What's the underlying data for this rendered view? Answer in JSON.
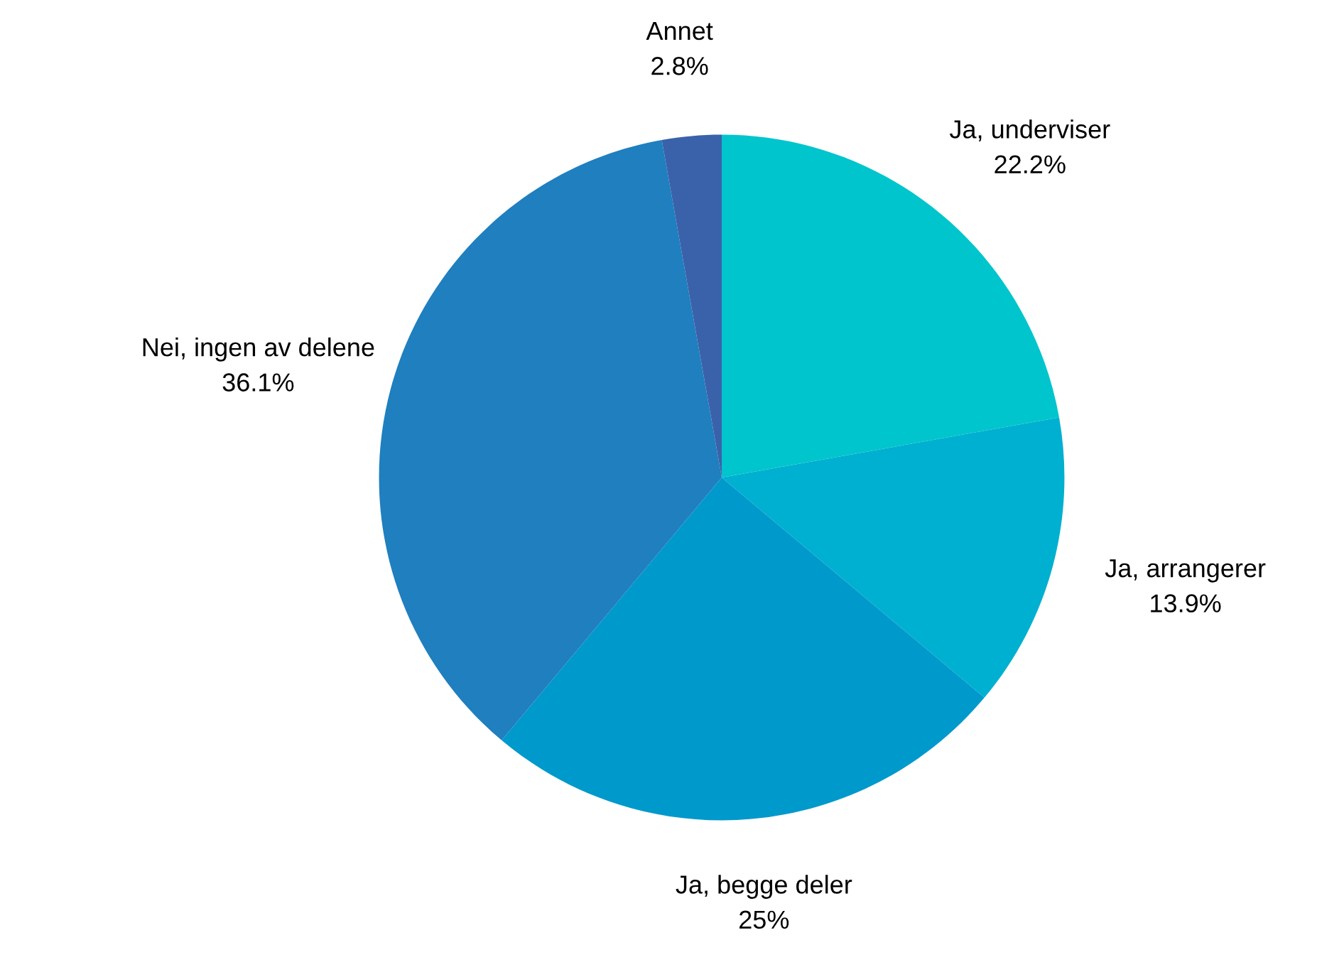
{
  "chart_data": {
    "type": "pie",
    "categories": [
      "Ja, underviser",
      "Ja, arrangerer",
      "Ja, begge deler",
      "Nei, ingen av delene",
      "Annet"
    ],
    "values": [
      22.2,
      13.9,
      25,
      36.1,
      2.8
    ],
    "value_labels": [
      "22.2%",
      "13.9%",
      "25%",
      "36.1%",
      "2.8%"
    ],
    "colors": [
      "#00c5cd",
      "#00b0d0",
      "#0099cc",
      "#1f7fbf",
      "#3a62aa"
    ],
    "legend": false
  }
}
